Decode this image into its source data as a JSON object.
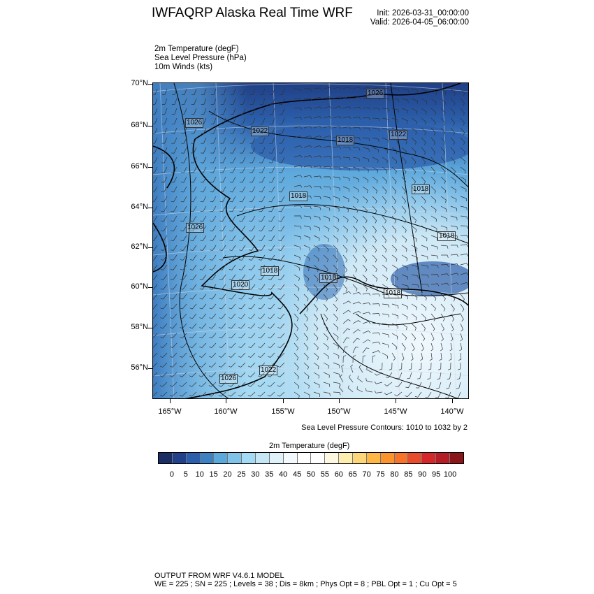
{
  "header": {
    "title": "IWFAQRP Alaska Real Time WRF",
    "init": "Init: 2026-03-31_00:00:00",
    "valid": "Valid: 2026-04-05_06:00:00"
  },
  "fields": [
    "2m Temperature   (degF)",
    "Sea Level Pressure   (hPa)",
    "10m Winds   (kts)"
  ],
  "map": {
    "lat_labels": [
      "70°N",
      "68°N",
      "66°N",
      "64°N",
      "62°N",
      "60°N",
      "58°N",
      "56°N"
    ],
    "lon_labels": [
      "165°W",
      "160°W",
      "155°W",
      "150°W",
      "145°W",
      "140°W"
    ],
    "contour_labels": [
      "1026",
      "1026",
      "1022",
      "1018",
      "1022",
      "1018",
      "1018",
      "1026",
      "1018",
      "1018",
      "1020",
      "1018",
      "1018",
      "1022",
      "1026"
    ]
  },
  "slp_note": "Sea Level Pressure Contours: 1010 to 1032 by 2",
  "colorbar": {
    "title": "2m Temperature  (degF)",
    "labels": [
      "0",
      "5",
      "10",
      "15",
      "20",
      "25",
      "30",
      "35",
      "40",
      "45",
      "50",
      "55",
      "60",
      "65",
      "70",
      "75",
      "80",
      "85",
      "90",
      "95",
      "100"
    ],
    "colors": [
      "#1c2d63",
      "#22418a",
      "#2b5eab",
      "#3e81c2",
      "#5ba8db",
      "#80c3e8",
      "#a3dbf5",
      "#c4e6f5",
      "#dff1f9",
      "#f3f9fd",
      "#ffffff",
      "#ffffff",
      "#fff8e0",
      "#fdeeb0",
      "#fed67a",
      "#feb745",
      "#fc942d",
      "#f8732a",
      "#e74c2c",
      "#d5272b",
      "#b41c26",
      "#8b1619"
    ]
  },
  "footer": {
    "line1": "OUTPUT FROM WRF V4.6.1 MODEL",
    "line2": "WE = 225 ; SN = 225 ; Levels = 38 ; Dis = 8km ; Phys Opt = 8 ; PBL Opt = 1 ; Cu Opt = 5"
  }
}
